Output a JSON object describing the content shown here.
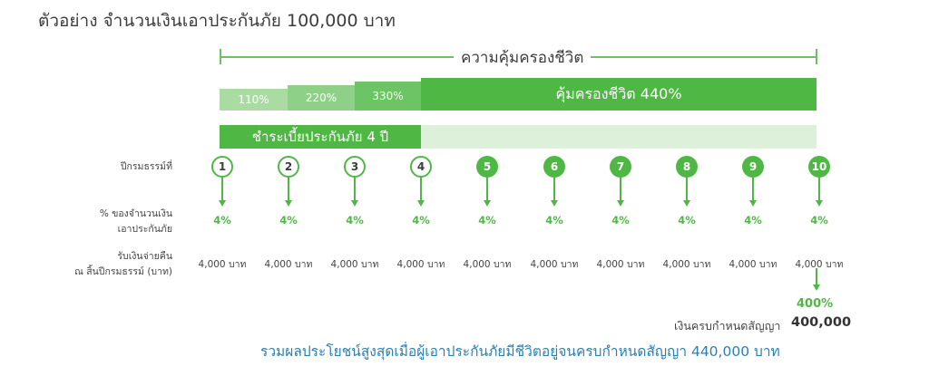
{
  "title": "ตัวอย่าง จำนวนเงินเอาประกันภัย 100,000 บาท",
  "coverage_bracket_label": "ความคุ้มครองชีวิต",
  "coverage_steps": [
    {
      "label": "110%",
      "value": 110
    },
    {
      "label": "220%",
      "value": 220
    },
    {
      "label": "330%",
      "value": 330
    },
    {
      "label": "คุ้มครองชีวิต 440%",
      "value": 440
    }
  ],
  "premium_bar_label": "ชำระเบี้ยประกันภัย 4 ปี",
  "row_labels": {
    "policy_year": "ปีกรมธรรม์ที่",
    "percent_line1": "% ของจำนวนเงิน",
    "percent_line2": "เอาประกันภัย",
    "payout_line1": "รับเงินจ่ายคืน",
    "payout_line2": "ณ สิ้นปีกรมธรรม์ (บาท)"
  },
  "years": [
    {
      "year": "1",
      "percent": "4%",
      "amount": "4,000 บาท"
    },
    {
      "year": "2",
      "percent": "4%",
      "amount": "4,000 บาท"
    },
    {
      "year": "3",
      "percent": "4%",
      "amount": "4,000 บาท"
    },
    {
      "year": "4",
      "percent": "4%",
      "amount": "4,000 บาท"
    },
    {
      "year": "5",
      "percent": "4%",
      "amount": "4,000 บาท"
    },
    {
      "year": "6",
      "percent": "4%",
      "amount": "4,000 บาท"
    },
    {
      "year": "7",
      "percent": "4%",
      "amount": "4,000 บาท"
    },
    {
      "year": "8",
      "percent": "4%",
      "amount": "4,000 บาท"
    },
    {
      "year": "9",
      "percent": "4%",
      "amount": "4,000 บาท"
    },
    {
      "year": "10",
      "percent": "4%",
      "amount": "4,000 บาท"
    }
  ],
  "paid_years": 4,
  "maturity": {
    "percent": "400%",
    "label": "เงินครบกำหนดสัญญา",
    "value": "400,000"
  },
  "summary": "รวมผลประโยชน์สูงสุดเมื่อผู้เอาประกันภัยมีชีวิตอยู่จนครบกำหนดสัญญา  440,000 บาท",
  "colors": {
    "step_110": "#a9dba3",
    "step_220": "#8fd088",
    "step_330": "#6cc464",
    "step_main": "#4fb845",
    "premium_paid": "#4fb845",
    "premium_rest": "#ddf1da",
    "summary_text": "#2b7fb3"
  }
}
